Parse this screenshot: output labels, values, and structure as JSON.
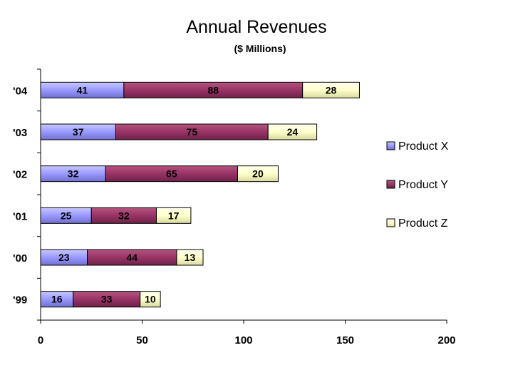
{
  "chart_data": {
    "type": "bar",
    "orientation": "horizontal",
    "stacked": true,
    "title": "Annual Revenues",
    "subtitle": "($ Millions)",
    "categories": [
      "'99",
      "'00",
      "'01",
      "'02",
      "'03",
      "'04"
    ],
    "series": [
      {
        "name": "Product X",
        "color": "#9999ff",
        "values": [
          16,
          23,
          25,
          32,
          37,
          41
        ]
      },
      {
        "name": "Product Y",
        "color": "#993366",
        "values": [
          33,
          44,
          32,
          65,
          75,
          88
        ]
      },
      {
        "name": "Product Z",
        "color": "#ffffcc",
        "values": [
          10,
          13,
          17,
          20,
          24,
          28
        ]
      }
    ],
    "xlim": [
      0,
      200
    ],
    "xticks": [
      "0",
      "50",
      "100",
      "150",
      "200"
    ],
    "xlabel": "",
    "ylabel": "",
    "grid": false,
    "legend": "right"
  }
}
